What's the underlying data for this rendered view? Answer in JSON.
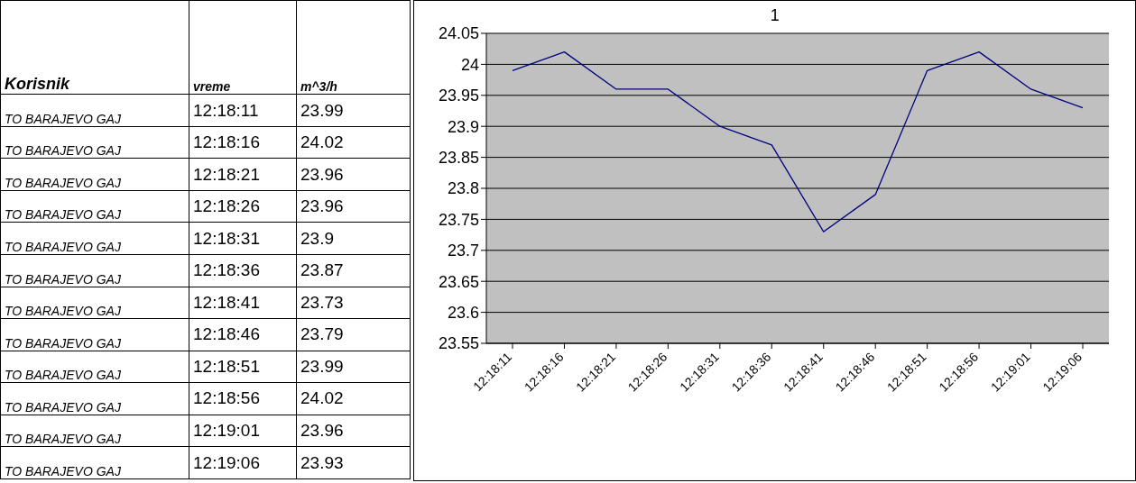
{
  "chart_data": {
    "type": "line",
    "title": "1",
    "categories": [
      "12:18:11",
      "12:18:16",
      "12:18:21",
      "12:18:26",
      "12:18:31",
      "12:18:36",
      "12:18:41",
      "12:18:46",
      "12:18:51",
      "12:18:56",
      "12:19:01",
      "12:19:06"
    ],
    "values": [
      23.99,
      24.02,
      23.96,
      23.96,
      23.9,
      23.87,
      23.73,
      23.79,
      23.99,
      24.02,
      23.96,
      23.93
    ],
    "color": "#000080",
    "ylim": [
      23.55,
      24.05
    ],
    "yticks": [
      23.55,
      23.6,
      23.65,
      23.7,
      23.75,
      23.8,
      23.85,
      23.9,
      23.95,
      24,
      24.05
    ],
    "grid": "y",
    "legend": false,
    "marker": "none",
    "line_style": "solid",
    "annotations": [
      "Korisnik",
      "vreme",
      "m^3/h",
      "TO BARAJEVO GAJ",
      "TO BARAJEVO GAJ",
      "TO BARAJEVO GAJ",
      "TO BARAJEVO GAJ",
      "TO BARAJEVO GAJ",
      "TO BARAJEVO GAJ",
      "TO BARAJEVO GAJ",
      "TO BARAJEVO GAJ",
      "TO BARAJEVO GAJ",
      "TO BARAJEVO GAJ",
      "TO BARAJEVO GAJ",
      "TO BARAJEVO GAJ",
      "23.99",
      "24.02",
      "23.96",
      "23.96",
      "23.9",
      "23.87",
      "23.73",
      "23.79",
      "23.99",
      "24.02",
      "23.96",
      "23.93"
    ]
  }
}
